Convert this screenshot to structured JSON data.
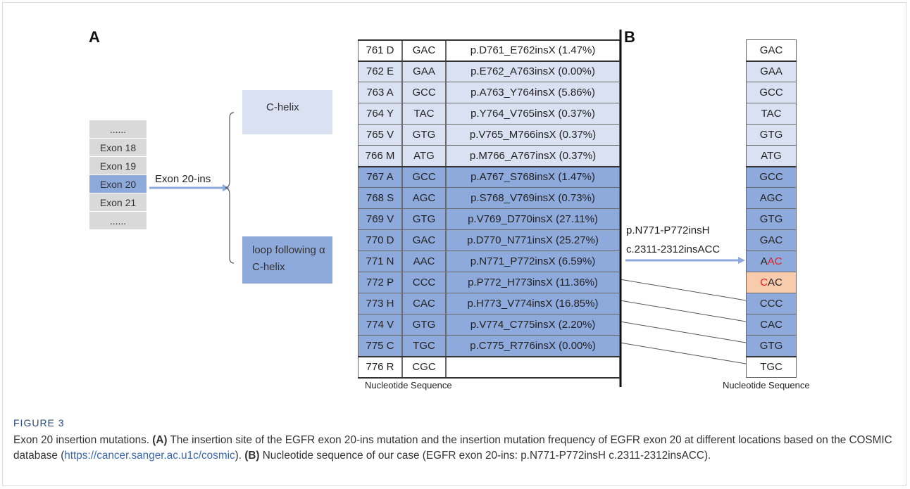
{
  "panels": {
    "a": "A",
    "b": "B"
  },
  "colors": {
    "light": "#d9e1f2",
    "dark": "#8ea9db",
    "grey": "#d9d9d9",
    "orange": "#f8cbad",
    "accent": "#e02020",
    "arrow": "#8ea9db"
  },
  "exons": [
    {
      "label": "......",
      "highlight": false
    },
    {
      "label": "Exon 18",
      "highlight": false
    },
    {
      "label": "Exon 19",
      "highlight": false
    },
    {
      "label": "Exon 20",
      "highlight": true
    },
    {
      "label": "Exon 21",
      "highlight": false
    },
    {
      "label": "......",
      "highlight": false
    }
  ],
  "exon_arrow_label": "Exon 20-ins",
  "c_helix_label": "C-helix",
  "loop_label": "loop following α C-helix",
  "table_a": [
    {
      "pos": "761 D",
      "codon": "GAC",
      "mutation": "p.D761_E762insX (1.47%)",
      "group": "white"
    },
    {
      "pos": "762 E",
      "codon": "GAA",
      "mutation": "p.E762_A763insX (0.00%)",
      "group": "light"
    },
    {
      "pos": "763 A",
      "codon": "GCC",
      "mutation": "p.A763_Y764insX (5.86%)",
      "group": "light"
    },
    {
      "pos": "764 Y",
      "codon": "TAC",
      "mutation": "p.Y764_V765insX (0.37%)",
      "group": "light"
    },
    {
      "pos": "765 V",
      "codon": "GTG",
      "mutation": "p.V765_M766insX (0.37%)",
      "group": "light"
    },
    {
      "pos": "766 M",
      "codon": "ATG",
      "mutation": "p.M766_A767insX (0.37%)",
      "group": "light"
    },
    {
      "pos": "767 A",
      "codon": "GCC",
      "mutation": "p.A767_S768insX (1.47%)",
      "group": "dark"
    },
    {
      "pos": "768 S",
      "codon": "AGC",
      "mutation": "p.S768_V769insX (0.73%)",
      "group": "dark"
    },
    {
      "pos": "769 V",
      "codon": "GTG",
      "mutation": "p.V769_D770insX (27.11%)",
      "group": "dark"
    },
    {
      "pos": "770 D",
      "codon": "GAC",
      "mutation": "p.D770_N771insX (25.27%)",
      "group": "dark"
    },
    {
      "pos": "771 N",
      "codon": "AAC",
      "mutation": "p.N771_P772insX (6.59%)",
      "group": "dark"
    },
    {
      "pos": "772 P",
      "codon": "CCC",
      "mutation": "p.P772_H773insX (11.36%)",
      "group": "dark"
    },
    {
      "pos": "773 H",
      "codon": "CAC",
      "mutation": "p.H773_V774insX (16.85%)",
      "group": "dark"
    },
    {
      "pos": "774 V",
      "codon": "GTG",
      "mutation": "p.V774_C775insX (2.20%)",
      "group": "dark"
    },
    {
      "pos": "775 C",
      "codon": "TGC",
      "mutation": "p.C775_R776insX (0.00%)",
      "group": "dark"
    },
    {
      "pos": "776 R",
      "codon": "CGC",
      "mutation": "",
      "group": "white"
    }
  ],
  "seq_label_a": "Nucleotide Sequence",
  "table_b": [
    {
      "codon": "GAC",
      "group": "white"
    },
    {
      "codon": "GAA",
      "group": "light"
    },
    {
      "codon": "GCC",
      "group": "light"
    },
    {
      "codon": "TAC",
      "group": "light"
    },
    {
      "codon": "GTG",
      "group": "light"
    },
    {
      "codon": "ATG",
      "group": "light"
    },
    {
      "codon": "GCC",
      "group": "dark"
    },
    {
      "codon": "AGC",
      "group": "dark"
    },
    {
      "codon": "GTG",
      "group": "dark"
    },
    {
      "codon": "GAC",
      "group": "dark"
    },
    {
      "codon": "AAC",
      "group": "dark"
    },
    {
      "codon": "CAC",
      "group": "orange"
    },
    {
      "codon": "CCC",
      "group": "dark"
    },
    {
      "codon": "CAC",
      "group": "dark"
    },
    {
      "codon": "GTG",
      "group": "dark"
    },
    {
      "codon": "TGC",
      "group": "white"
    }
  ],
  "red_parts": {
    "aac": {
      "plain": "A",
      "red": "AC"
    },
    "cac": {
      "red": "C",
      "plain": "AC"
    }
  },
  "seq_label_b": "Nucleotide Sequence",
  "insertion_protein": "p.N771-P772insH",
  "insertion_cdna": "c.2311-2312insACC",
  "caption": {
    "title": "FIGURE 3",
    "intro": "Exon 20 insertion mutations.",
    "a_tag": "(A)",
    "a_text_1": "The insertion site of the EGFR exon 20-ins mutation and the insertion mutation frequency of EGFR exon 20 at different locations based on the COSMIC database (",
    "a_link": "https://cancer.sanger.ac.u1c/cosmic",
    "a_text_2": ").",
    "b_tag": "(B)",
    "b_text": "Nucleotide sequence of our case (EGFR exon 20-ins: p.N771-P772insH c.2311-2312insACC)."
  }
}
